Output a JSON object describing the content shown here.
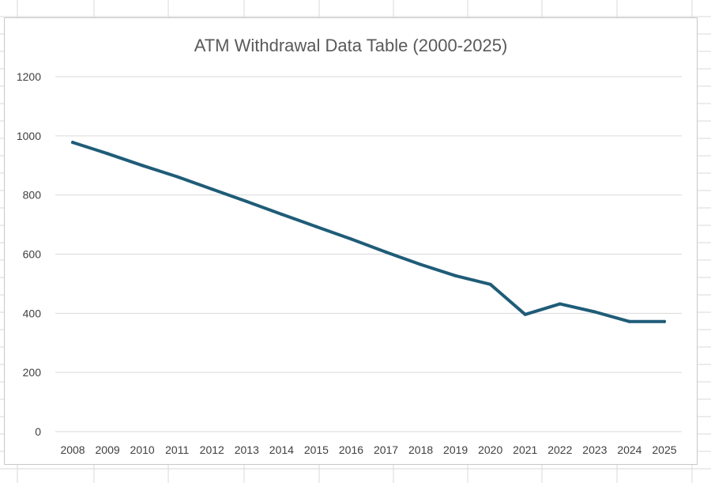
{
  "chart_data": {
    "type": "line",
    "title": "ATM Withdrawal Data Table (2000-2025)",
    "xlabel": "",
    "ylabel": "",
    "categories": [
      "2008",
      "2009",
      "2010",
      "2011",
      "2012",
      "2013",
      "2014",
      "2015",
      "2016",
      "2017",
      "2018",
      "2019",
      "2020",
      "2021",
      "2022",
      "2023",
      "2024",
      "2025"
    ],
    "series": [
      {
        "values": [
          978,
          940,
          900,
          862,
          820,
          778,
          735,
          693,
          651,
          607,
          565,
          527,
          498,
          396,
          432,
          405,
          372,
          372
        ],
        "color": "#1f5c78"
      }
    ],
    "ylim": [
      0,
      1200
    ],
    "yticks": [
      0,
      200,
      400,
      600,
      800,
      1000,
      1200
    ],
    "grid": true,
    "legend": "none"
  }
}
